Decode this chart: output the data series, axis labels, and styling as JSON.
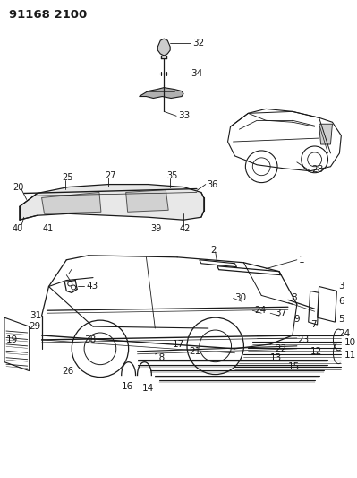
{
  "title": "91168 2100",
  "bg_color": "#ffffff",
  "line_color": "#1a1a1a",
  "fig_width": 3.99,
  "fig_height": 5.33,
  "dpi": 100
}
